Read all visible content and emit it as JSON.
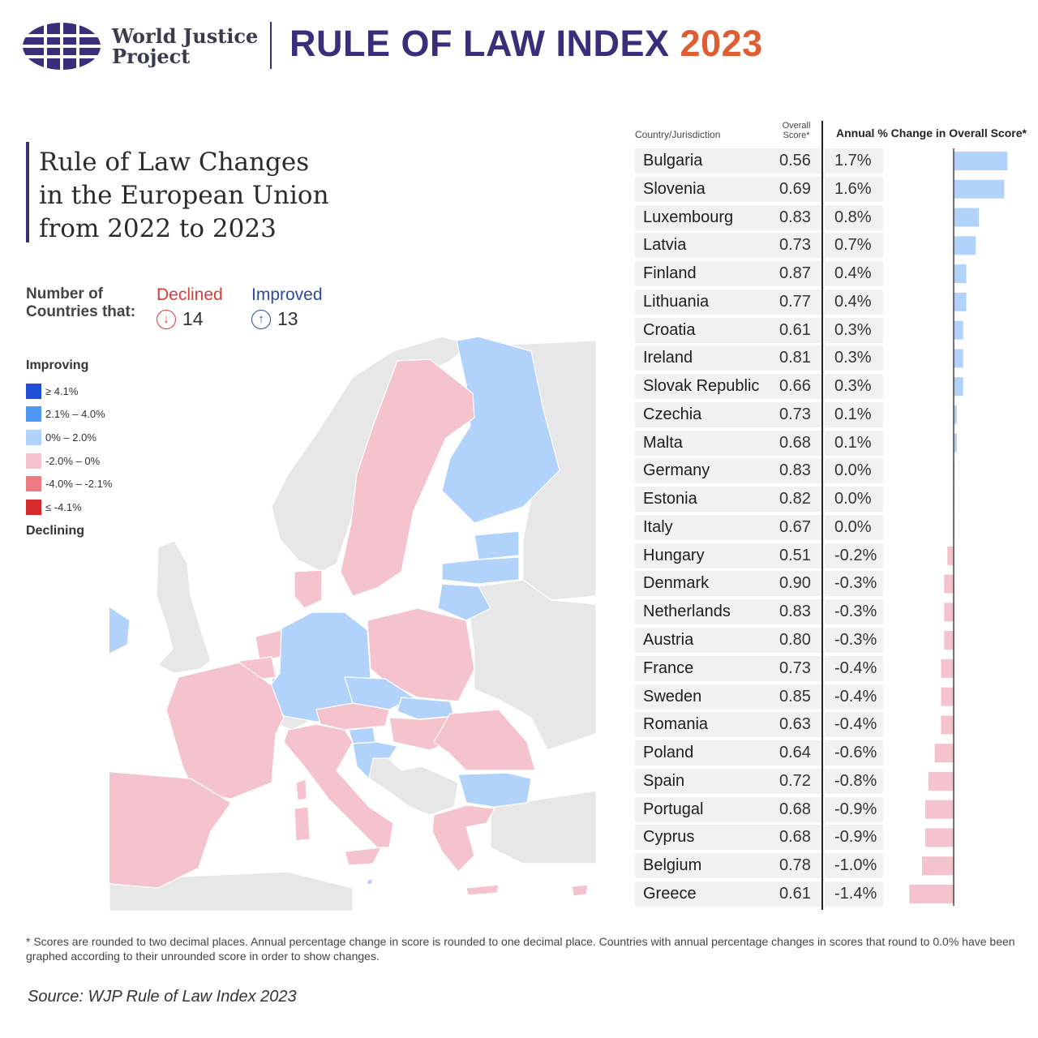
{
  "header": {
    "org_name_line1": "World Justice",
    "org_name_line2": "Project",
    "index_title": "RULE OF LAW INDEX",
    "index_year": "2023",
    "logo_icon": "globe-grid-icon"
  },
  "map_title_lines": [
    "Rule of Law Changes",
    "in the European Union",
    "from 2022 to 2023"
  ],
  "counts": {
    "label_line1": "Number of",
    "label_line2": "Countries that:",
    "declined_label": "Declined",
    "declined_count": "14",
    "declined_icon": "arrow-down-circle-icon",
    "improved_label": "Improved",
    "improved_count": "13",
    "improved_icon": "arrow-up-circle-icon"
  },
  "legend": {
    "top_label": "Improving",
    "bottom_label": "Declining",
    "items": [
      {
        "label": "≥ 4.1%",
        "color": "#1e4fd6"
      },
      {
        "label": "2.1% – 4.0%",
        "color": "#4f97f2"
      },
      {
        "label": "0% – 2.0%",
        "color": "#b1d3fb"
      },
      {
        "label": "-2.0% – 0%",
        "color": "#f5c3cd"
      },
      {
        "label": "-4.0% – -2.1%",
        "color": "#ec7b84"
      },
      {
        "label": "≤ -4.1%",
        "color": "#d42a2a"
      }
    ]
  },
  "colors": {
    "improved": "#b1d3fb",
    "declined": "#f5c3cd",
    "non_eu": "#e7e7e7",
    "accent": "#3a2d7a",
    "year": "#e05d33"
  },
  "table_headers": {
    "country": "Country/Jurisdiction",
    "score_line1": "Overall",
    "score_line2": "Score*",
    "change": "Annual % Change in Overall Score*"
  },
  "chart_data": {
    "type": "bar",
    "orientation": "horizontal",
    "categories": [
      "Bulgaria",
      "Slovenia",
      "Luxembourg",
      "Latvia",
      "Finland",
      "Lithuania",
      "Croatia",
      "Ireland",
      "Slovak Republic",
      "Czechia",
      "Malta",
      "Germany",
      "Estonia",
      "Italy",
      "Hungary",
      "Denmark",
      "Netherlands",
      "Austria",
      "France",
      "Sweden",
      "Romania",
      "Poland",
      "Spain",
      "Portugal",
      "Cyprus",
      "Belgium",
      "Greece"
    ],
    "scores": [
      "0.56",
      "0.69",
      "0.83",
      "0.73",
      "0.87",
      "0.77",
      "0.61",
      "0.81",
      "0.66",
      "0.73",
      "0.68",
      "0.83",
      "0.82",
      "0.67",
      "0.51",
      "0.90",
      "0.83",
      "0.80",
      "0.73",
      "0.85",
      "0.63",
      "0.64",
      "0.72",
      "0.68",
      "0.68",
      "0.78",
      "0.61"
    ],
    "change_labels": [
      "1.7%",
      "1.6%",
      "0.8%",
      "0.7%",
      "0.4%",
      "0.4%",
      "0.3%",
      "0.3%",
      "0.3%",
      "0.1%",
      "0.1%",
      "0.0%",
      "0.0%",
      "0.0%",
      "-0.2%",
      "-0.3%",
      "-0.3%",
      "-0.3%",
      "-0.4%",
      "-0.4%",
      "-0.4%",
      "-0.6%",
      "-0.8%",
      "-0.9%",
      "-0.9%",
      "-1.0%",
      "-1.4%"
    ],
    "values": [
      1.7,
      1.6,
      0.8,
      0.7,
      0.4,
      0.4,
      0.3,
      0.3,
      0.3,
      0.1,
      0.1,
      0.0,
      0.0,
      0.0,
      -0.2,
      -0.3,
      -0.3,
      -0.3,
      -0.4,
      -0.4,
      -0.4,
      -0.6,
      -0.8,
      -0.9,
      -0.9,
      -1.0,
      -1.4
    ],
    "xlim": [
      -1.4,
      1.7
    ]
  },
  "footnote": "* Scores are rounded to two decimal places. Annual percentage change in score is rounded to one decimal place. Countries with annual percentage changes in scores that round to 0.0% have been graphed according to their unrounded score in order to show changes.",
  "source": "Source: WJP Rule of Law Index 2023"
}
